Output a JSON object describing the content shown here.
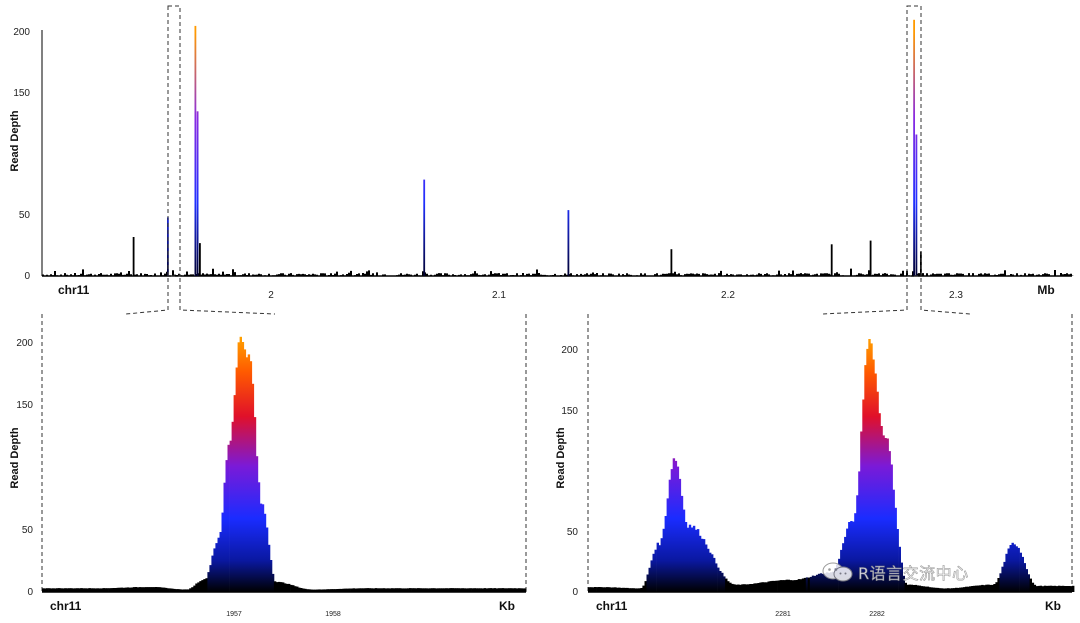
{
  "chart_data": [
    {
      "type": "bar",
      "panel": "overview",
      "ylabel": "Read Depth",
      "chromosome": "chr11",
      "x_unit": "Mb",
      "x_ticks": [
        "2",
        "2.1",
        "2.2",
        "2.3"
      ],
      "y_ticks": [
        "0",
        "50",
        "150",
        "200"
      ],
      "ylim": [
        0,
        200
      ],
      "x": [
        1.94,
        1.955,
        1.967,
        1.968,
        1.969,
        2.067,
        2.13,
        2.175,
        2.245,
        2.262,
        2.281,
        2.282,
        2.284
      ],
      "values": [
        32,
        48,
        205,
        135,
        27,
        79,
        54,
        22,
        26,
        29,
        210,
        116,
        20
      ]
    },
    {
      "type": "bar",
      "panel": "zoom-left",
      "ylabel": "Read Depth",
      "chromosome": "chr11",
      "x_unit": "Kb",
      "x_ticks": [
        "1957",
        "1958"
      ],
      "y_ticks": [
        "0",
        "50",
        "150",
        "200"
      ],
      "ylim": [
        0,
        200
      ],
      "x": [
        1956.2,
        1956.5,
        1956.7,
        1956.8,
        1956.88,
        1956.94,
        1957.0,
        1957.05,
        1957.12,
        1957.2,
        1957.4,
        1957.7,
        1958.3
      ],
      "values": [
        3,
        4,
        2,
        10,
        42,
        120,
        203,
        188,
        70,
        8,
        2,
        3,
        3
      ]
    },
    {
      "type": "bar",
      "panel": "zoom-right",
      "ylabel": "Read Depth",
      "chromosome": "chr11",
      "x_unit": "Kb",
      "x_ticks": [
        "2281",
        "2282"
      ],
      "y_ticks": [
        "0",
        "50",
        "150",
        "200"
      ],
      "ylim": [
        0,
        200
      ],
      "x": [
        2280.1,
        2280.3,
        2280.4,
        2280.48,
        2280.55,
        2280.8,
        2281.1,
        2281.3,
        2281.42,
        2281.5,
        2281.58,
        2281.7,
        2281.9,
        2282.15,
        2282.26,
        2282.38
      ],
      "values": [
        4,
        3,
        40,
        110,
        55,
        6,
        10,
        16,
        60,
        208,
        130,
        6,
        3,
        6,
        40,
        5
      ]
    }
  ],
  "watermark": {
    "text": "R语言交流中心",
    "icon": "wechat-icon"
  }
}
